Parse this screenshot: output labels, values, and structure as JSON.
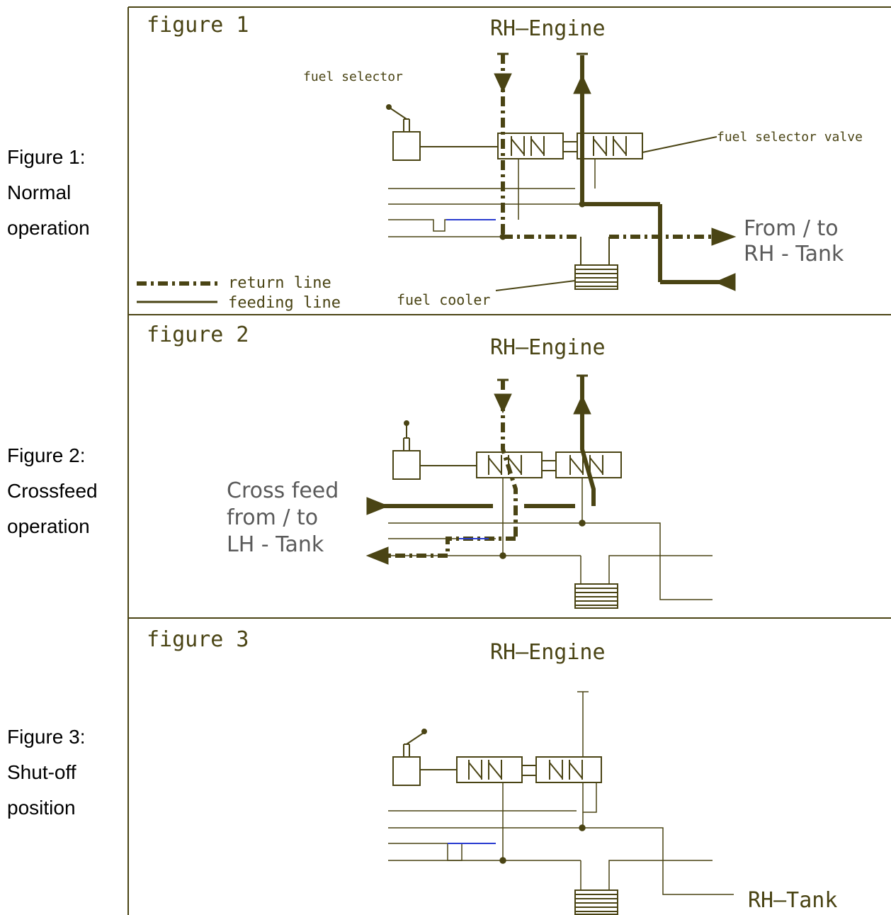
{
  "side_labels": [
    {
      "lines": [
        "Figure 1:",
        "Normal",
        "operation"
      ]
    },
    {
      "lines": [
        "Figure 2:",
        "Crossfeed",
        "operation"
      ]
    },
    {
      "lines": [
        "Figure 3:",
        "Shut-off",
        "position"
      ]
    }
  ],
  "figures": [
    {
      "title": "figure  1",
      "engine": "RH–Engine"
    },
    {
      "title": "figure  2",
      "engine": "RH–Engine"
    },
    {
      "title": "figure  3",
      "engine": "RH–Engine"
    }
  ],
  "labels": {
    "fuel_selector": "fuel  selector",
    "fuel_selector_valve": "fuel  selector  valve",
    "fuel_cooler": "fuel  cooler",
    "from_to_line1": "From / to",
    "from_to_line2": "RH - Tank",
    "crossfeed_line1": "Cross feed",
    "crossfeed_line2": "from / to",
    "crossfeed_line3": "LH - Tank",
    "rh_tank": "RH–Tank"
  },
  "legend": {
    "return": "return  line",
    "feeding": "feeding  line"
  },
  "colors": {
    "line": "#4a4414",
    "highlight": "#2a3cd0"
  }
}
